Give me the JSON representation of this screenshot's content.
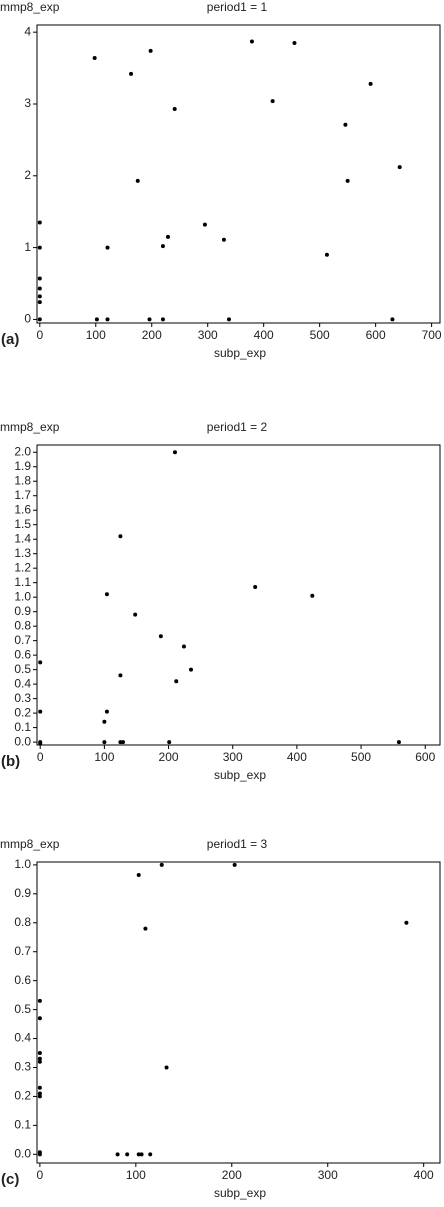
{
  "chart_data": [
    {
      "type": "scatter",
      "title": "period1 = 1",
      "x_label": "subp_exp",
      "y_label": "mmp8_exp",
      "panel_label": "(a)",
      "color": "#000000",
      "x": [
        0,
        0,
        0,
        0,
        0,
        0,
        0,
        98,
        102,
        121,
        121,
        163,
        175,
        198,
        196,
        220,
        220,
        229,
        241,
        295,
        329,
        338,
        379,
        416,
        455,
        513,
        546,
        550,
        591,
        643,
        630
      ],
      "values": [
        0,
        1.35,
        1.0,
        0.57,
        0.43,
        0.32,
        0.24,
        3.64,
        0,
        0,
        1.0,
        3.42,
        1.93,
        3.74,
        0,
        0,
        1.02,
        1.15,
        2.93,
        1.32,
        1.11,
        0,
        3.87,
        3.04,
        3.85,
        0.9,
        2.71,
        1.93,
        3.28,
        2.12,
        0
      ],
      "xlim": [
        -5,
        715
      ],
      "ylim": [
        -0.05,
        4.1
      ],
      "xticks": [
        0,
        100,
        200,
        300,
        400,
        500,
        600,
        700
      ],
      "yticks": [
        0,
        1,
        2,
        3,
        4
      ]
    },
    {
      "type": "scatter",
      "title": "period1 = 2",
      "x_label": "subp_exp",
      "y_label": "mmp8_exp",
      "panel_label": "(b)",
      "color": "#000000",
      "x": [
        0,
        0,
        0,
        0,
        100,
        100,
        104,
        104,
        125,
        148,
        188,
        224,
        235,
        212,
        125,
        125,
        129,
        201,
        210,
        335,
        424,
        559
      ],
      "values": [
        0,
        -0.01,
        0.21,
        0.55,
        0,
        0.14,
        0.21,
        1.02,
        1.42,
        0.88,
        0.73,
        0.66,
        0.5,
        0.42,
        0.46,
        0,
        0,
        0,
        2.0,
        1.07,
        1.01,
        0
      ],
      "xlim": [
        -5,
        623
      ],
      "ylim": [
        -0.02,
        2.05
      ],
      "xticks": [
        0,
        100,
        200,
        300,
        400,
        500,
        600
      ],
      "yticks": [
        {
          "value": 0,
          "label": "0.0"
        },
        0.1,
        0.2,
        0.3,
        0.4,
        0.5,
        0.6,
        0.7,
        0.8,
        0.9,
        {
          "value": 1,
          "label": "1.0"
        },
        1.1,
        1.2,
        1.3,
        1.4,
        1.5,
        1.6,
        1.7,
        1.8,
        1.9,
        {
          "value": 2,
          "label": "2.0"
        }
      ]
    },
    {
      "type": "scatter",
      "title": "period1 = 3",
      "x_label": "subp_exp",
      "y_label": "mmp8_exp",
      "panel_label": "(c)",
      "color": "#000000",
      "x": [
        0,
        0,
        0,
        0,
        0,
        0,
        0,
        0,
        0,
        0,
        81,
        91,
        103,
        106,
        115,
        103,
        110,
        127,
        132,
        203,
        382
      ],
      "values": [
        0,
        0.007,
        0.53,
        0.47,
        0.35,
        0.33,
        0.32,
        0.23,
        0.21,
        0.2,
        0,
        0,
        0,
        0,
        0,
        0.965,
        0.78,
        1.0,
        0.3,
        1.0,
        0.8
      ],
      "xlim": [
        -3,
        417
      ],
      "ylim": [
        -0.03,
        1.01
      ],
      "xticks": [
        0,
        100,
        200,
        300,
        400
      ],
      "yticks": [
        {
          "value": 0,
          "label": "0.0"
        },
        0.1,
        0.2,
        0.3,
        0.4,
        0.5,
        0.6,
        0.7,
        0.8,
        0.9,
        {
          "value": 1,
          "label": "1.0"
        }
      ]
    }
  ]
}
